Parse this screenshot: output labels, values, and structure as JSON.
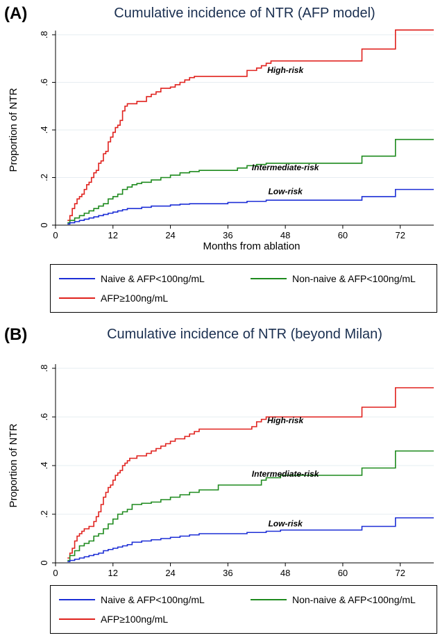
{
  "chart_data": [
    {
      "panel_label": "(A)",
      "type": "line",
      "step": true,
      "title": "Cumulative incidence of NTR (AFP model)",
      "xlabel": "Months from ablation",
      "ylabel": "Proportion of NTR",
      "xlim": [
        0,
        79
      ],
      "ylim": [
        0,
        0.8
      ],
      "xticks": [
        0,
        12,
        24,
        36,
        48,
        60,
        72
      ],
      "yticks": [
        0,
        0.2,
        0.4,
        0.6,
        0.8
      ],
      "ytick_labels": [
        "0",
        ".2",
        ".4",
        ".6",
        ".8"
      ],
      "grid": true,
      "legend_position": "bottom",
      "series": [
        {
          "name": "AFP≥100ng/mL",
          "color": "#e0211d",
          "x": [
            2.5,
            3,
            3.5,
            4,
            4.5,
            5,
            5.5,
            6,
            6.5,
            7,
            7.5,
            8,
            8.5,
            9,
            9.5,
            10,
            10.5,
            11,
            11.5,
            12,
            12.5,
            13,
            13.5,
            14,
            14.5,
            15,
            15.5,
            17,
            18,
            19,
            20,
            21,
            22,
            23,
            24,
            25,
            26,
            27,
            28,
            29,
            30,
            33,
            36,
            40,
            42,
            43,
            44,
            45,
            47,
            63.5,
            64,
            70,
            71,
            79
          ],
          "y": [
            0.02,
            0.04,
            0.07,
            0.09,
            0.11,
            0.12,
            0.13,
            0.15,
            0.17,
            0.18,
            0.2,
            0.22,
            0.23,
            0.26,
            0.27,
            0.3,
            0.31,
            0.35,
            0.37,
            0.39,
            0.41,
            0.42,
            0.44,
            0.48,
            0.5,
            0.51,
            0.51,
            0.52,
            0.52,
            0.54,
            0.55,
            0.56,
            0.575,
            0.575,
            0.58,
            0.59,
            0.6,
            0.61,
            0.62,
            0.625,
            0.625,
            0.625,
            0.625,
            0.65,
            0.66,
            0.67,
            0.68,
            0.69,
            0.69,
            0.69,
            0.74,
            0.74,
            0.82,
            0.82
          ]
        },
        {
          "name": "Non-naive & AFP<100ng/mL",
          "color": "#1d8a1d",
          "x": [
            2.5,
            3,
            4,
            5,
            6,
            7,
            8,
            9,
            10,
            11,
            12,
            13,
            14,
            15,
            16,
            17,
            18,
            20,
            22,
            24,
            26,
            28,
            30,
            34,
            38,
            40,
            42,
            44,
            47,
            63.5,
            64,
            70,
            71,
            79
          ],
          "y": [
            0.01,
            0.02,
            0.03,
            0.04,
            0.05,
            0.06,
            0.07,
            0.08,
            0.09,
            0.11,
            0.12,
            0.13,
            0.15,
            0.16,
            0.17,
            0.175,
            0.18,
            0.19,
            0.2,
            0.21,
            0.22,
            0.225,
            0.23,
            0.23,
            0.24,
            0.25,
            0.255,
            0.26,
            0.26,
            0.26,
            0.29,
            0.29,
            0.36,
            0.36
          ],
          "label": "Intermediate-risk"
        },
        {
          "name": "Naive & AFP<100ng/mL",
          "color": "#1c2ed6",
          "x": [
            2.5,
            3,
            4,
            5,
            6,
            7,
            8,
            9,
            10,
            11,
            12,
            13,
            14,
            15,
            16,
            18,
            20,
            22,
            24,
            26,
            28,
            30,
            36,
            40,
            44,
            47,
            63.5,
            64,
            70,
            71,
            79
          ],
          "y": [
            0.005,
            0.01,
            0.015,
            0.02,
            0.025,
            0.03,
            0.035,
            0.04,
            0.045,
            0.05,
            0.055,
            0.06,
            0.065,
            0.07,
            0.07,
            0.075,
            0.08,
            0.08,
            0.085,
            0.088,
            0.09,
            0.09,
            0.095,
            0.1,
            0.105,
            0.105,
            0.105,
            0.12,
            0.12,
            0.15,
            0.15
          ],
          "label": "Low-risk"
        }
      ],
      "annotations": [
        "High-risk",
        "Intermediate-risk",
        "Low-risk"
      ],
      "legend": [
        "Naive & AFP<100ng/mL",
        "Non-naive & AFP<100ng/mL",
        "AFP≥100ng/mL"
      ]
    },
    {
      "panel_label": "(B)",
      "type": "line",
      "step": true,
      "title": "Cumulative incidence of NTR (beyond Milan)",
      "xlabel": "Months from ablation",
      "ylabel": "Proportion of NTR",
      "xlim": [
        0,
        79
      ],
      "ylim": [
        0,
        0.8
      ],
      "xticks": [
        0,
        12,
        24,
        36,
        48,
        60,
        72
      ],
      "yticks": [
        0,
        0.2,
        0.4,
        0.6,
        0.8
      ],
      "ytick_labels": [
        "0",
        ".2",
        ".4",
        ".6",
        ".8"
      ],
      "grid": true,
      "legend_position": "bottom",
      "series": [
        {
          "name": "AFP≥100ng/mL",
          "color": "#e0211d",
          "x": [
            2.5,
            3,
            3.5,
            4,
            4.5,
            5,
            5.5,
            6,
            7,
            8,
            8.5,
            9,
            9.5,
            10,
            10.5,
            11,
            11.5,
            12,
            12.5,
            13,
            13.5,
            14,
            14.5,
            15,
            15.5,
            16,
            17,
            18,
            19,
            20,
            21,
            22,
            23,
            24,
            25,
            26,
            27,
            28,
            29,
            30,
            33,
            36,
            41,
            42,
            43,
            44,
            47,
            63.5,
            64,
            70,
            71,
            79
          ],
          "y": [
            0.02,
            0.04,
            0.06,
            0.09,
            0.11,
            0.12,
            0.13,
            0.14,
            0.15,
            0.17,
            0.19,
            0.21,
            0.24,
            0.27,
            0.29,
            0.31,
            0.32,
            0.34,
            0.36,
            0.37,
            0.38,
            0.4,
            0.41,
            0.42,
            0.43,
            0.43,
            0.44,
            0.44,
            0.45,
            0.46,
            0.47,
            0.48,
            0.49,
            0.5,
            0.51,
            0.51,
            0.52,
            0.53,
            0.54,
            0.55,
            0.55,
            0.55,
            0.56,
            0.58,
            0.59,
            0.6,
            0.6,
            0.6,
            0.64,
            0.64,
            0.72,
            0.72
          ]
        },
        {
          "name": "Non-naive & AFP<100ng/mL",
          "color": "#1d8a1d",
          "x": [
            2.5,
            3,
            4,
            5,
            6,
            7,
            8,
            9,
            10,
            11,
            12,
            13,
            14,
            15,
            16,
            18,
            20,
            22,
            24,
            26,
            28,
            30,
            34,
            38,
            42,
            43,
            44,
            47,
            63.5,
            64,
            70,
            71,
            79
          ],
          "y": [
            0.01,
            0.03,
            0.05,
            0.07,
            0.08,
            0.09,
            0.11,
            0.12,
            0.14,
            0.16,
            0.18,
            0.2,
            0.21,
            0.22,
            0.24,
            0.245,
            0.25,
            0.26,
            0.27,
            0.28,
            0.29,
            0.3,
            0.32,
            0.32,
            0.32,
            0.34,
            0.35,
            0.36,
            0.36,
            0.39,
            0.39,
            0.46,
            0.46
          ],
          "label": "Intermediate-risk"
        },
        {
          "name": "Naive & AFP<100ng/mL",
          "color": "#1c2ed6",
          "x": [
            2.5,
            3,
            4,
            5,
            6,
            7,
            8,
            9,
            10,
            11,
            12,
            13,
            14,
            15,
            16,
            18,
            20,
            22,
            24,
            26,
            28,
            30,
            36,
            40,
            44,
            47,
            63.5,
            64,
            70,
            71,
            79
          ],
          "y": [
            0.005,
            0.01,
            0.015,
            0.02,
            0.025,
            0.03,
            0.035,
            0.04,
            0.05,
            0.055,
            0.06,
            0.065,
            0.07,
            0.075,
            0.085,
            0.09,
            0.095,
            0.1,
            0.105,
            0.11,
            0.115,
            0.12,
            0.12,
            0.125,
            0.13,
            0.135,
            0.135,
            0.15,
            0.15,
            0.185,
            0.185
          ],
          "label": "Low-risk"
        }
      ],
      "annotations": [
        "High-risk",
        "Intermediate-risk",
        "Low-risk"
      ],
      "legend": [
        "Naive & AFP<100ng/mL",
        "Non-naive & AFP<100ng/mL",
        "AFP≥100ng/mL"
      ]
    }
  ]
}
